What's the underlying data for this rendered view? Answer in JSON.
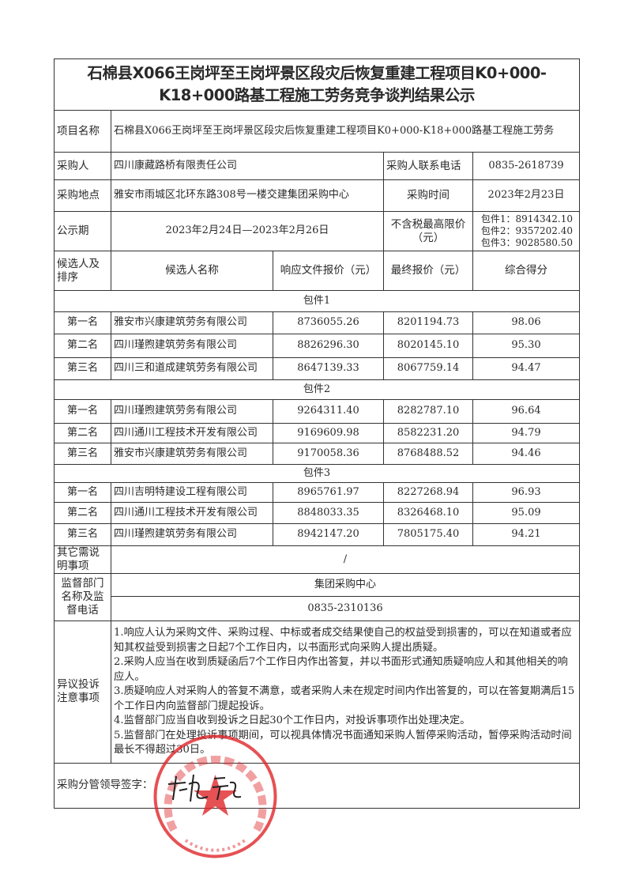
{
  "title": "石棉县X066王岗坪至王岗坪景区段灾后恢复重建工程项目K0+000-K18+000路基工程施工劳务竞争谈判结果公示",
  "project": {
    "label": "项目名称",
    "value": "石棉县X066王岗坪至王岗坪景区段灾后恢复重建工程项目K0+000-K18+000路基工程施工劳务"
  },
  "purchaser": {
    "label": "采购人",
    "value": "四川康藏路桥有限责任公司",
    "phone_label": "采购人联系电话",
    "phone": "0835-2618739"
  },
  "location": {
    "label": "采购地点",
    "value": "雅安市雨城区北环东路308号一楼交建集团采购中心",
    "time_label": "采购时间",
    "time": "2023年2月23日"
  },
  "period": {
    "label": "公示期",
    "value": "2023年2月24日—2023年2月26日",
    "limit_label": "不含税最高限价（元）",
    "limits": [
      "包件1：8914342.10",
      "包件2：9357202.40",
      "包件3：9028580.50"
    ]
  },
  "headers": {
    "rank": "候选人及排序",
    "name": "候选人名称",
    "response": "响应文件报价（元）",
    "final": "最终报价（元）",
    "score": "综合得分"
  },
  "packages": [
    {
      "name": "包件1",
      "rows": [
        {
          "rank": "第一名",
          "name": "雅安市兴康建筑劳务有限公司",
          "response": "8736055.26",
          "final": "8201194.73",
          "score": "98.06"
        },
        {
          "rank": "第二名",
          "name": "四川瑾煦建筑劳务有限公司",
          "response": "8826296.30",
          "final": "8020145.10",
          "score": "95.30"
        },
        {
          "rank": "第三名",
          "name": "四川三和道成建筑劳务有限公司",
          "response": "8647139.33",
          "final": "8067759.14",
          "score": "94.47"
        }
      ]
    },
    {
      "name": "包件2",
      "rows": [
        {
          "rank": "第一名",
          "name": "四川瑾煦建筑劳务有限公司",
          "response": "9264311.40",
          "final": "8282787.10",
          "score": "96.64"
        },
        {
          "rank": "第二名",
          "name": "四川通川工程技术开发有限公司",
          "response": "9169609.98",
          "final": "8582231.20",
          "score": "94.79"
        },
        {
          "rank": "第三名",
          "name": "雅安市兴康建筑劳务有限公司",
          "response": "9170058.36",
          "final": "8768488.52",
          "score": "94.46"
        }
      ]
    },
    {
      "name": "包件3",
      "rows": [
        {
          "rank": "第一名",
          "name": "四川吉明特建设工程有限公司",
          "response": "8965761.97",
          "final": "8227268.94",
          "score": "96.93"
        },
        {
          "rank": "第二名",
          "name": "四川通川工程技术开发有限公司",
          "response": "8848033.35",
          "final": "8326468.10",
          "score": "95.09"
        },
        {
          "rank": "第三名",
          "name": "四川瑾煦建筑劳务有限公司",
          "response": "8942147.20",
          "final": "7805175.40",
          "score": "94.21"
        }
      ]
    }
  ],
  "other": {
    "label": "其它需说明事项",
    "value": "/"
  },
  "supervision": {
    "label": "监督部门名称及监督电话",
    "name": "集团采购中心",
    "phone": "0835-2310136"
  },
  "complaint": {
    "label": "异议投诉注意事项",
    "items": [
      "1.响应人认为采购文件、采购过程、中标或者成交结果使自己的权益受到损害的，可以在知道或者应知其权益受到损害之日起7个工作日内，以书面形式向采购人提出质疑。",
      "2.采购人应当在收到质疑函后7个工作日内作出答复，并以书面形式通知质疑响应人和其他相关的响应人。",
      "3.质疑响应人对采购人的答复不满意，或者采购人未在规定时间内作出答复的，可以在答复期满后15个工作日内向监督部门提起投诉。",
      "4.监督部门应当自收到投诉之日起30个工作日内，对投诉事项作出处理决定。",
      "5.监督部门在处理投诉事项期间，可以视具体情况书面通知采购人暂停采购活动，暂停采购活动时间最长不得超过30日。"
    ]
  },
  "signature": {
    "label": "采购分管领导签字："
  },
  "stamp": {
    "text": "四川康藏路桥有限责任公司",
    "code": "5118025034105",
    "color": "#e0262a"
  }
}
